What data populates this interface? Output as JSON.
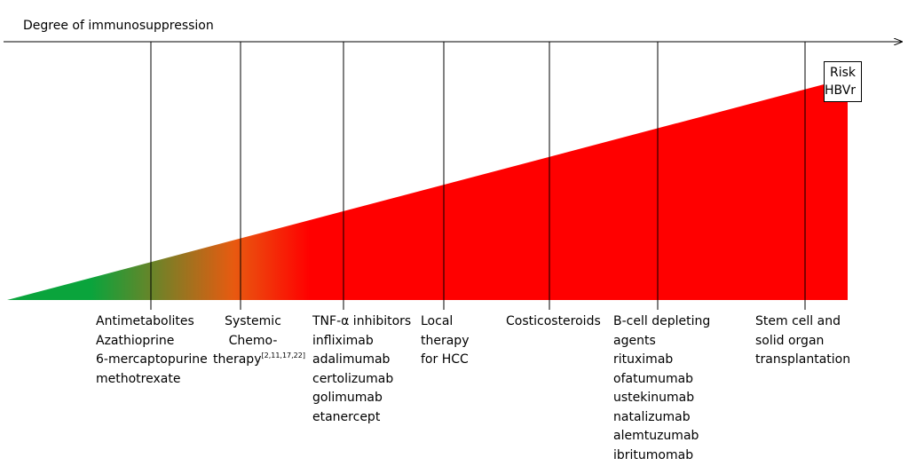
{
  "axis": {
    "title": "Degree of immunosuppression"
  },
  "risk_box": {
    "line1": "Risk",
    "line2": "HBVr"
  },
  "gradient_colors": {
    "low": "#0aa43c",
    "mid": "#e85a10",
    "high": "#ff0000"
  },
  "categories": [
    {
      "id": "antimetabolites",
      "lines": [
        "Antimetabolites",
        "Azathioprine",
        "6-mercaptopurine",
        "methotrexate"
      ]
    },
    {
      "id": "chemotherapy",
      "lines": [
        "Systemic",
        "Chemo-",
        "therapy"
      ],
      "citation": "[2,11,17,22]"
    },
    {
      "id": "tnf",
      "lines": [
        "TNF-α inhibitors",
        "infliximab",
        "adalimumab",
        "certolizumab",
        "golimumab",
        "etanercept"
      ]
    },
    {
      "id": "local",
      "lines": [
        "Local",
        "therapy",
        "for HCC"
      ]
    },
    {
      "id": "corticosteroids",
      "lines": [
        "Costicosteroids"
      ]
    },
    {
      "id": "bcell",
      "lines": [
        "B-cell depleting",
        "agents",
        "rituximab",
        "ofatumumab",
        "ustekinumab",
        "natalizumab",
        "alemtuzumab",
        "ibritumomab"
      ]
    },
    {
      "id": "transplant",
      "lines": [
        "Stem cell and",
        "solid organ",
        "transplantation"
      ]
    }
  ]
}
